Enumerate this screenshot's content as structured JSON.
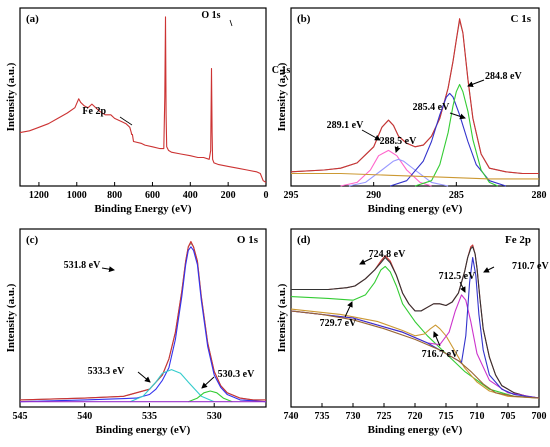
{
  "chart_data": [
    {
      "type": "line",
      "panel_label": "(a)",
      "panel_title": "",
      "xlabel": "Binding Energy (eV)",
      "ylabel": "Intensity (a.u.)",
      "xlim": [
        1300,
        0
      ],
      "ylim": [
        0,
        100
      ],
      "xticks": [
        1200,
        1000,
        800,
        600,
        400,
        200,
        0
      ],
      "series": [
        {
          "color": "#cc3333",
          "x": [
            1300,
            1250,
            1200,
            1150,
            1100,
            1050,
            1010,
            990,
            980,
            960,
            940,
            920,
            880,
            850,
            820,
            800,
            780,
            760,
            740,
            720,
            712,
            710,
            706,
            700,
            660,
            640,
            600,
            560,
            540,
            535,
            531,
            528,
            525,
            515,
            500,
            450,
            400,
            360,
            330,
            300,
            292,
            288,
            285,
            282,
            275,
            250,
            200,
            150,
            100,
            50,
            30,
            15,
            0
          ],
          "y": [
            30,
            31,
            33,
            35,
            38,
            41,
            44,
            49,
            47,
            45,
            44,
            46,
            42,
            40,
            40,
            38,
            37,
            36,
            35,
            33,
            30,
            29,
            29,
            25,
            24,
            23,
            22,
            21,
            21,
            50,
            95,
            40,
            22,
            20,
            19,
            18,
            17,
            16,
            16,
            15,
            20,
            66,
            30,
            15,
            13,
            12,
            11,
            10,
            9,
            8,
            7,
            3,
            2
          ]
        }
      ],
      "annotations": [
        {
          "text": "O 1s",
          "x": 531,
          "y": 95
        },
        {
          "text": "C 1s",
          "x": 285,
          "y": 66
        },
        {
          "text": "Fe 2p",
          "x": 712,
          "y": 30
        }
      ]
    },
    {
      "type": "line",
      "panel_label": "(b)",
      "panel_title": "C 1s",
      "xlabel": "Binding energy (eV)",
      "ylabel": "Intensity (a.u.)",
      "xlim": [
        295,
        280
      ],
      "ylim": [
        0,
        100
      ],
      "xticks": [
        295,
        290,
        285,
        280
      ],
      "series": [
        {
          "color": "#888888",
          "x": [
            295,
            293,
            292,
            291,
            290,
            289.5,
            289.1,
            288.8,
            288.5,
            288,
            287.5,
            287,
            286.5,
            286,
            285.5,
            285.2,
            285,
            284.8,
            284.6,
            284.3,
            284,
            283.5,
            283,
            282,
            281,
            280
          ],
          "y": [
            8,
            9,
            10,
            13,
            22,
            33,
            37,
            34,
            28,
            24,
            22,
            23,
            28,
            38,
            55,
            70,
            82,
            93,
            86,
            60,
            38,
            18,
            10,
            8,
            7,
            7
          ]
        },
        {
          "color": "#cc3333",
          "x": [
            295,
            293,
            292,
            291,
            290,
            289.5,
            289.1,
            288.8,
            288.5,
            288,
            287.5,
            287,
            286.5,
            286,
            285.5,
            285.2,
            285,
            284.8,
            284.6,
            284.3,
            284,
            283.5,
            283,
            282,
            281,
            280
          ],
          "y": [
            8,
            9,
            10,
            13,
            22,
            33,
            37,
            34,
            28,
            24,
            22,
            23,
            28,
            38,
            55,
            70,
            82,
            94,
            86,
            60,
            38,
            18,
            10,
            8,
            7,
            7
          ]
        },
        {
          "color": "#ff66cc",
          "x": [
            292,
            291,
            290.2,
            289.7,
            289.1,
            288.6,
            288,
            287.2,
            286.5
          ],
          "y": [
            0,
            2,
            9,
            17,
            20,
            17,
            9,
            2,
            0
          ]
        },
        {
          "color": "#9999ff",
          "x": [
            291.5,
            290.5,
            289.5,
            288.8,
            288.5,
            288.2,
            287.5,
            286.5,
            285.5
          ],
          "y": [
            0,
            2,
            9,
            14,
            15,
            14,
            9,
            2,
            0
          ]
        },
        {
          "color": "#3333cc",
          "x": [
            289,
            288,
            287,
            286.5,
            286,
            285.6,
            285.4,
            285.2,
            284.8,
            284.3,
            283.8,
            283,
            282
          ],
          "y": [
            0,
            3,
            14,
            25,
            40,
            50,
            52,
            50,
            40,
            25,
            12,
            3,
            0
          ]
        },
        {
          "color": "#33cc33",
          "x": [
            287.5,
            286.5,
            286,
            285.5,
            285.2,
            285,
            284.8,
            284.6,
            284.3,
            284,
            283.5,
            283,
            282.5
          ],
          "y": [
            0,
            3,
            12,
            30,
            45,
            53,
            57,
            53,
            42,
            26,
            9,
            2,
            0
          ]
        },
        {
          "color": "#cc9933",
          "x": [
            295,
            292,
            289,
            286,
            283,
            280
          ],
          "y": [
            7,
            7,
            6,
            5,
            4,
            4
          ]
        }
      ],
      "annotations": [
        {
          "text": "289.1 eV"
        },
        {
          "text": "288.5 eV"
        },
        {
          "text": "285.4 eV"
        },
        {
          "text": "284.8 eV"
        }
      ]
    },
    {
      "type": "line",
      "panel_label": "(c)",
      "panel_title": "O 1s",
      "xlabel": "Binding energy (eV)",
      "ylabel": "Intensity (a.u.)",
      "xlim": [
        545,
        526
      ],
      "ylim": [
        0,
        100
      ],
      "xticks": [
        545,
        540,
        535,
        530
      ],
      "series": [
        {
          "color": "#888888",
          "x": [
            545,
            540,
            537,
            535,
            534,
            533.5,
            533,
            532.5,
            532.2,
            532,
            531.8,
            531.6,
            531.3,
            531,
            530.5,
            530,
            529.5,
            529,
            528,
            527,
            526
          ],
          "y": [
            4,
            5,
            6,
            10,
            18,
            27,
            42,
            65,
            82,
            90,
            92,
            90,
            82,
            62,
            36,
            20,
            12,
            8,
            5,
            4,
            4
          ]
        },
        {
          "color": "#cc3333",
          "x": [
            545,
            540,
            537,
            535,
            534,
            533.5,
            533,
            532.5,
            532.2,
            532,
            531.8,
            531.6,
            531.3,
            531,
            530.5,
            530,
            529.5,
            529,
            528,
            527,
            526
          ],
          "y": [
            4,
            5,
            6,
            10,
            18,
            27,
            42,
            65,
            82,
            90,
            93,
            90,
            82,
            62,
            36,
            20,
            12,
            8,
            5,
            4,
            4
          ]
        },
        {
          "color": "#3333ee",
          "x": [
            545,
            540,
            536,
            535,
            534.5,
            534,
            533.5,
            533,
            532.5,
            532.2,
            532,
            531.8,
            531.6,
            531.3,
            531,
            530.5,
            530,
            529.5,
            529,
            528,
            526
          ],
          "y": [
            3,
            4,
            5,
            7,
            10,
            15,
            22,
            38,
            62,
            80,
            88,
            90,
            88,
            80,
            60,
            34,
            18,
            11,
            7,
            4,
            3
          ]
        },
        {
          "color": "#33cccc",
          "x": [
            536.5,
            535.5,
            534.5,
            534,
            533.3,
            532.6,
            532,
            531,
            530
          ],
          "y": [
            3,
            6,
            14,
            19,
            21,
            19,
            14,
            6,
            3
          ]
        },
        {
          "color": "#33cc33",
          "x": [
            532,
            531.3,
            530.8,
            530.3,
            529.8,
            529.3,
            528.6
          ],
          "y": [
            3,
            5,
            8,
            9,
            8,
            5,
            3
          ]
        },
        {
          "color": "#9933cc",
          "x": [
            545,
            540,
            535,
            530,
            526
          ],
          "y": [
            3,
            3,
            3,
            3,
            3
          ]
        }
      ],
      "annotations": [
        {
          "text": "531.8 eV"
        },
        {
          "text": "533.3 eV"
        },
        {
          "text": "530.3 eV"
        }
      ]
    },
    {
      "type": "line",
      "panel_label": "(d)",
      "panel_title": "Fe 2p",
      "xlabel": "Binding energy (eV)",
      "ylabel": "Intensity (a.u.)",
      "xlim": [
        740,
        700
      ],
      "ylim": [
        0,
        100
      ],
      "xticks": [
        740,
        735,
        730,
        725,
        720,
        715,
        710,
        705,
        700
      ],
      "series": [
        {
          "color": "#cc3333",
          "x": [
            740,
            737,
            734,
            731,
            729.7,
            728,
            726.5,
            725.5,
            724.8,
            724,
            723,
            722,
            721,
            720,
            719,
            718,
            717,
            716,
            715,
            714,
            713,
            712.5,
            712,
            711.5,
            711,
            710.7,
            710.3,
            710,
            709.5,
            709,
            708,
            707,
            706,
            704,
            702,
            700
          ],
          "y": [
            66,
            66,
            66,
            67,
            68,
            72,
            77,
            82,
            85,
            82,
            74,
            64,
            58,
            54,
            54,
            56,
            58,
            58,
            57,
            59,
            64,
            70,
            76,
            84,
            90,
            91,
            86,
            78,
            60,
            44,
            28,
            18,
            12,
            8,
            6,
            5
          ]
        },
        {
          "color": "#333333",
          "x": [
            740,
            737,
            734,
            731,
            729.7,
            728,
            726.5,
            725.5,
            724.8,
            724,
            723,
            722,
            721,
            720,
            719,
            718,
            717,
            716,
            715,
            714,
            713,
            712.5,
            712,
            711.5,
            711,
            710.7,
            710.3,
            710,
            709.5,
            709,
            708,
            707,
            706,
            704,
            702,
            700
          ],
          "y": [
            66,
            66,
            66,
            67,
            68,
            72,
            77,
            81,
            84,
            81,
            74,
            64,
            58,
            54,
            54,
            56,
            58,
            58,
            57,
            59,
            64,
            70,
            76,
            84,
            89,
            90,
            86,
            78,
            60,
            44,
            28,
            18,
            12,
            8,
            6,
            5
          ]
        },
        {
          "color": "#33cc33",
          "x": [
            740,
            734,
            730,
            728,
            726.5,
            725.5,
            724.8,
            724,
            723,
            722,
            720,
            718,
            715,
            712,
            708,
            704,
            700
          ],
          "y": [
            62,
            61,
            60,
            63,
            70,
            77,
            79,
            76,
            68,
            58,
            48,
            40,
            30,
            20,
            10,
            6,
            5
          ]
        },
        {
          "color": "#cc9933",
          "x": [
            740,
            732,
            726,
            722,
            720,
            718.5,
            717.5,
            716.7,
            716,
            715,
            714,
            713,
            712,
            710,
            708,
            705,
            700
          ],
          "y": [
            55,
            52,
            48,
            43,
            40,
            41,
            44,
            46,
            44,
            40,
            34,
            28,
            22,
            14,
            9,
            6,
            5
          ]
        },
        {
          "color": "#cc33cc",
          "x": [
            740,
            730,
            722,
            718,
            716,
            714.5,
            713.5,
            712.5,
            711.8,
            711,
            710,
            708,
            705,
            700
          ],
          "y": [
            54,
            50,
            42,
            36,
            35,
            42,
            54,
            63,
            60,
            48,
            30,
            15,
            8,
            5
          ]
        },
        {
          "color": "#3333cc",
          "x": [
            740,
            730,
            722,
            718,
            714,
            712.5,
            711.8,
            711.2,
            710.7,
            710.2,
            709.7,
            709,
            708,
            706,
            704,
            700
          ],
          "y": [
            54,
            50,
            42,
            36,
            28,
            25,
            40,
            70,
            84,
            74,
            52,
            32,
            18,
            10,
            7,
            5
          ]
        },
        {
          "color": "#996633",
          "x": [
            740,
            735,
            730,
            725,
            720,
            716,
            713,
            711,
            709,
            707,
            704,
            700
          ],
          "y": [
            54,
            52,
            49,
            44,
            38,
            32,
            26,
            20,
            13,
            8,
            6,
            5
          ]
        }
      ],
      "annotations": [
        {
          "text": "724.8 eV"
        },
        {
          "text": "729.7 eV"
        },
        {
          "text": "712.5 eV"
        },
        {
          "text": "710.7 eV"
        },
        {
          "text": "716.7 eV"
        }
      ]
    }
  ]
}
